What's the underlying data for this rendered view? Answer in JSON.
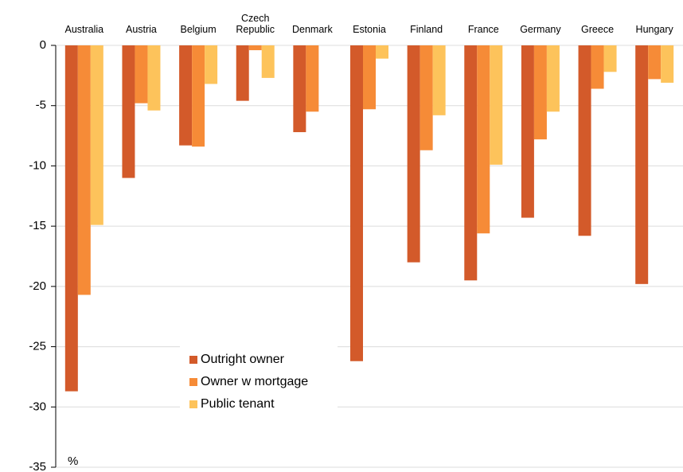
{
  "chart_data": {
    "type": "bar",
    "categories": [
      "Australia",
      "Austria",
      "Belgium",
      "Czech Republic",
      "Denmark",
      "Estonia",
      "Finland",
      "France",
      "Germany",
      "Greece",
      "Hungary"
    ],
    "series": [
      {
        "name": "Outright owner",
        "color": "#d35a2a",
        "values": [
          -28.7,
          -11.0,
          -8.3,
          -4.6,
          -7.2,
          -26.2,
          -18.0,
          -19.5,
          -14.3,
          -15.8,
          -19.8
        ]
      },
      {
        "name": "Owner w mortgage",
        "color": "#f68b37",
        "values": [
          -20.7,
          -4.8,
          -8.4,
          -0.4,
          -5.5,
          -5.3,
          -8.7,
          -15.6,
          -7.8,
          -3.6,
          -2.8
        ]
      },
      {
        "name": "Public tenant",
        "color": "#fdc35b",
        "values": [
          -14.9,
          -5.4,
          -3.2,
          -2.7,
          null,
          -1.1,
          -5.8,
          -9.9,
          -5.5,
          -2.2,
          -3.1
        ]
      }
    ],
    "ylim": [
      -35,
      0
    ],
    "yticks": [
      0,
      -5,
      -10,
      -15,
      -20,
      -25,
      -30,
      -35
    ],
    "grid": true,
    "annotation": "%"
  }
}
